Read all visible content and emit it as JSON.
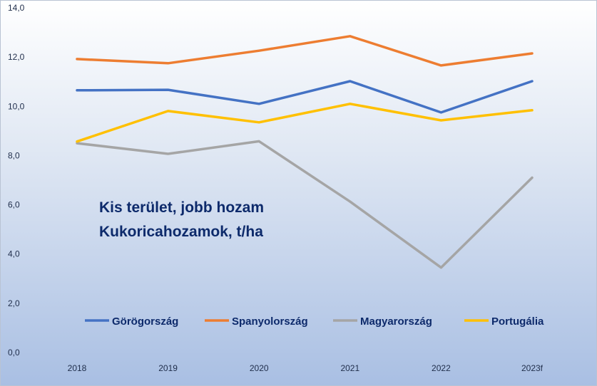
{
  "chart_data": {
    "type": "line",
    "title": "",
    "annotation": [
      "Kis terület, jobb hozam",
      "Kukoricahozamok, t/ha"
    ],
    "xlabel": "",
    "ylabel": "",
    "categories": [
      "2018",
      "2019",
      "2020",
      "2021",
      "2022",
      "2023f"
    ],
    "ylim": [
      0,
      14
    ],
    "yticks": [
      "0,0",
      "2,0",
      "4,0",
      "6,0",
      "8,0",
      "10,0",
      "12,0",
      "14,0"
    ],
    "grid": false,
    "legend_position": "bottom",
    "series": [
      {
        "name": "Görögország",
        "color": "#4472c4",
        "values": [
          10.65,
          10.67,
          10.1,
          11.02,
          9.75,
          11.02
        ]
      },
      {
        "name": "Spanyolország",
        "color": "#ed7d31",
        "values": [
          11.92,
          11.75,
          12.26,
          12.85,
          11.66,
          12.15
        ]
      },
      {
        "name": "Magyarország",
        "color": "#a5a5a5",
        "values": [
          8.5,
          8.07,
          8.58,
          6.13,
          3.45,
          7.1
        ]
      },
      {
        "name": "Portugália",
        "color": "#ffc000",
        "values": [
          8.57,
          9.81,
          9.35,
          10.1,
          9.43,
          9.84
        ]
      }
    ]
  }
}
